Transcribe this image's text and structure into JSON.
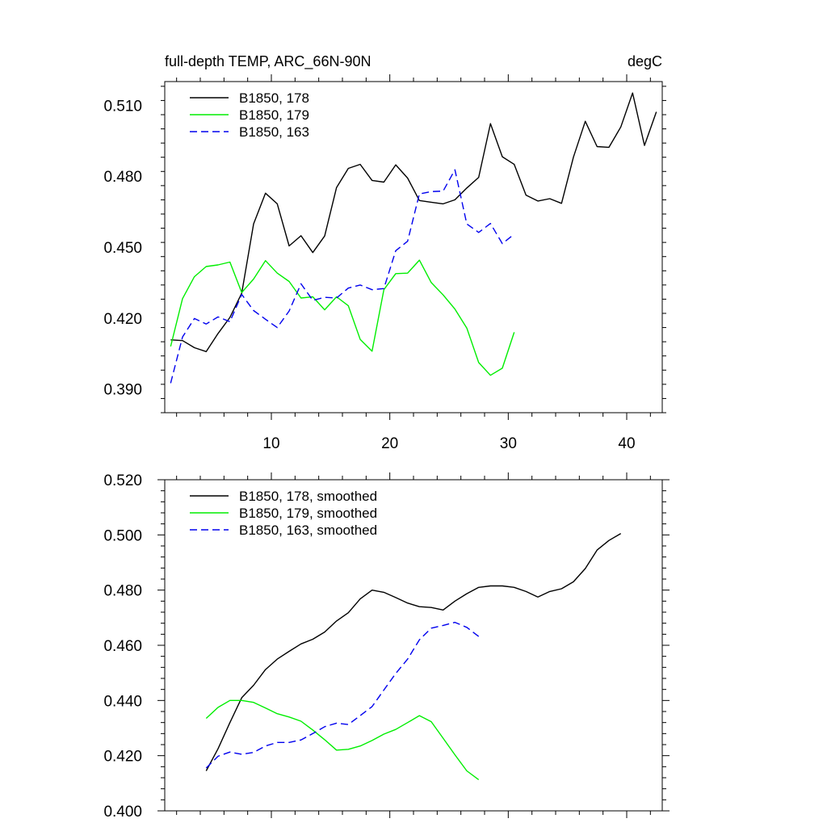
{
  "chart_data": [
    {
      "type": "line",
      "title_left": "full-depth TEMP, ARC_66N-90N",
      "title_right": "degC",
      "xlim": [
        1,
        43
      ],
      "ylim": [
        0.38,
        0.52
      ],
      "x_major_ticks": [
        10,
        20,
        30,
        40
      ],
      "x_tick_labels": [
        "10",
        "20",
        "30",
        "40"
      ],
      "y_major_ticks": [
        0.39,
        0.42,
        0.45,
        0.48,
        0.51
      ],
      "y_tick_labels": [
        "0.390",
        "0.420",
        "0.450",
        "0.480",
        "0.510"
      ],
      "legend_position": "top-left",
      "series": [
        {
          "name": "B1850, 178",
          "color": "#000000",
          "dash": "solid",
          "x": [
            1.5,
            2.5,
            3.5,
            4.5,
            5.5,
            6.5,
            7.5,
            8.5,
            9.5,
            10.5,
            11.5,
            12.5,
            13.5,
            14.5,
            15.5,
            16.5,
            17.5,
            18.5,
            19.5,
            20.5,
            21.5,
            22.5,
            23.5,
            24.5,
            25.5,
            26.5,
            27.5,
            28.5,
            29.5,
            30.5,
            31.5,
            32.5,
            33.5,
            34.5,
            35.5,
            36.5,
            37.5,
            38.5,
            39.5,
            40.5,
            41.5,
            42.5
          ],
          "values": [
            0.4108,
            0.4105,
            0.4075,
            0.4058,
            0.4135,
            0.4203,
            0.4305,
            0.4598,
            0.4728,
            0.4683,
            0.4505,
            0.4548,
            0.4477,
            0.4547,
            0.4752,
            0.4833,
            0.485,
            0.4782,
            0.4775,
            0.4848,
            0.4792,
            0.4697,
            0.469,
            0.4683,
            0.47,
            0.475,
            0.4795,
            0.5022,
            0.4882,
            0.485,
            0.472,
            0.4695,
            0.4705,
            0.4685,
            0.488,
            0.5032,
            0.4925,
            0.4922,
            0.5008,
            0.5152,
            0.493,
            0.5072
          ]
        },
        {
          "name": "B1850, 179",
          "color": "#00ee00",
          "dash": "solid",
          "x": [
            1.5,
            2.5,
            3.5,
            4.5,
            5.5,
            6.5,
            7.5,
            8.5,
            9.5,
            10.5,
            11.5,
            12.5,
            13.5,
            14.5,
            15.5,
            16.5,
            17.5,
            18.5,
            19.5,
            20.5,
            21.5,
            22.5,
            23.5,
            24.5,
            25.5,
            26.5,
            27.5,
            28.5,
            29.5,
            30.5
          ],
          "values": [
            0.408,
            0.4282,
            0.4375,
            0.4418,
            0.4425,
            0.4437,
            0.4308,
            0.4365,
            0.4443,
            0.439,
            0.4355,
            0.4285,
            0.429,
            0.4235,
            0.429,
            0.4252,
            0.411,
            0.406,
            0.432,
            0.4388,
            0.439,
            0.4445,
            0.435,
            0.4298,
            0.4238,
            0.4158,
            0.4012,
            0.3958,
            0.3988,
            0.414
          ]
        },
        {
          "name": "B1850, 163",
          "color": "#0000ee",
          "dash": "dashed",
          "x": [
            1.5,
            2.5,
            3.5,
            4.5,
            5.5,
            6.5,
            7.5,
            8.5,
            9.5,
            10.5,
            11.5,
            12.5,
            13.5,
            14.5,
            15.5,
            16.5,
            17.5,
            18.5,
            19.5,
            20.5,
            21.5,
            22.5,
            23.5,
            24.5,
            25.5,
            26.5,
            27.5,
            28.5,
            29.5,
            30.5
          ],
          "values": [
            0.3925,
            0.412,
            0.4198,
            0.4175,
            0.4205,
            0.4185,
            0.43,
            0.4232,
            0.4195,
            0.416,
            0.423,
            0.4345,
            0.4275,
            0.4288,
            0.4285,
            0.4327,
            0.434,
            0.432,
            0.4325,
            0.4485,
            0.4525,
            0.4725,
            0.4735,
            0.4737,
            0.4827,
            0.4598,
            0.4562,
            0.46,
            0.4515,
            0.4555
          ]
        }
      ]
    },
    {
      "type": "line",
      "xlim": [
        1,
        43
      ],
      "ylim": [
        0.4,
        0.52
      ],
      "x_major_ticks": [
        10,
        20,
        30,
        40
      ],
      "y_major_ticks": [
        0.4,
        0.42,
        0.44,
        0.46,
        0.48,
        0.5,
        0.52
      ],
      "y_tick_labels": [
        "0.400",
        "0.420",
        "0.440",
        "0.460",
        "0.480",
        "0.500",
        "0.520"
      ],
      "legend_position": "top-left",
      "series": [
        {
          "name": "B1850, 178, smoothed",
          "color": "#000000",
          "dash": "solid",
          "x": [
            4.5,
            5.5,
            6.5,
            7.5,
            8.5,
            9.5,
            10.5,
            11.5,
            12.5,
            13.5,
            14.5,
            15.5,
            16.5,
            17.5,
            18.5,
            19.5,
            20.5,
            21.5,
            22.5,
            23.5,
            24.5,
            25.5,
            26.5,
            27.5,
            28.5,
            29.5,
            30.5,
            31.5,
            32.5,
            33.5,
            34.5,
            35.5,
            36.5,
            37.5,
            38.5,
            39.5
          ],
          "values": [
            0.4145,
            0.4225,
            0.432,
            0.441,
            0.4455,
            0.4512,
            0.455,
            0.4578,
            0.4605,
            0.4622,
            0.4648,
            0.4688,
            0.4718,
            0.4768,
            0.48,
            0.4792,
            0.4773,
            0.4753,
            0.474,
            0.4737,
            0.4728,
            0.476,
            0.4787,
            0.481,
            0.4815,
            0.4815,
            0.481,
            0.4795,
            0.4775,
            0.4795,
            0.4805,
            0.483,
            0.4878,
            0.4945,
            0.498,
            0.5005
          ]
        },
        {
          "name": "B1850, 179, smoothed",
          "color": "#00ee00",
          "dash": "solid",
          "x": [
            4.5,
            5.5,
            6.5,
            7.5,
            8.5,
            9.5,
            10.5,
            11.5,
            12.5,
            13.5,
            14.5,
            15.5,
            16.5,
            17.5,
            18.5,
            19.5,
            20.5,
            21.5,
            22.5,
            23.5,
            24.5,
            25.5,
            26.5,
            27.5
          ],
          "values": [
            0.4335,
            0.4375,
            0.44,
            0.44,
            0.4393,
            0.4373,
            0.4352,
            0.434,
            0.4325,
            0.4293,
            0.4258,
            0.422,
            0.4223,
            0.4235,
            0.4255,
            0.4278,
            0.4295,
            0.432,
            0.4345,
            0.4323,
            0.4263,
            0.4203,
            0.4145,
            0.4113
          ]
        },
        {
          "name": "B1850, 163, smoothed",
          "color": "#0000ee",
          "dash": "dashed",
          "x": [
            4.5,
            5.5,
            6.5,
            7.5,
            8.5,
            9.5,
            10.5,
            11.5,
            12.5,
            13.5,
            14.5,
            15.5,
            16.5,
            17.5,
            18.5,
            19.5,
            20.5,
            21.5,
            22.5,
            23.5,
            24.5,
            25.5,
            26.5,
            27.5
          ],
          "values": [
            0.4155,
            0.4198,
            0.4213,
            0.4205,
            0.4212,
            0.4235,
            0.4248,
            0.4248,
            0.4257,
            0.428,
            0.4305,
            0.4318,
            0.4313,
            0.4345,
            0.4378,
            0.4438,
            0.4498,
            0.455,
            0.462,
            0.4662,
            0.4672,
            0.4683,
            0.4665,
            0.4632
          ]
        }
      ]
    }
  ]
}
